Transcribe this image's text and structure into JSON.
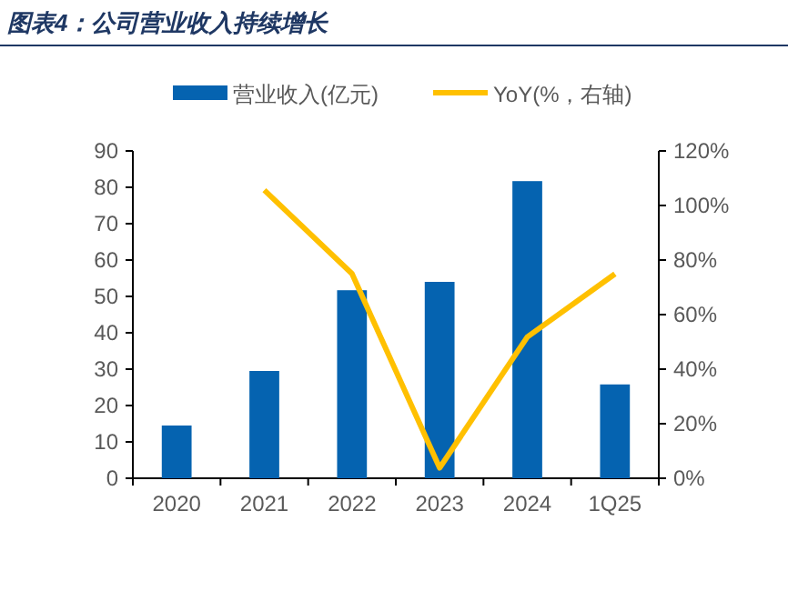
{
  "chart_data": {
    "type": "bar",
    "title": "图表4：公司营业收入持续增长",
    "categories": [
      "2020",
      "2021",
      "2022",
      "2023",
      "2024",
      "1Q25"
    ],
    "series": [
      {
        "name": "营业收入(亿元)",
        "color": "#0563b0",
        "values": [
          14.5,
          29.5,
          51.7,
          54,
          81.7,
          25.8
        ]
      },
      {
        "name": "YoY(%，右轴)",
        "type": "line",
        "axis": "y2",
        "color": "#ffc000",
        "values": [
          null,
          105.6,
          75,
          3.8,
          51.8,
          74.9
        ]
      }
    ],
    "ylim": [
      0,
      90
    ],
    "yticks": [
      0,
      10,
      20,
      30,
      40,
      50,
      60,
      70,
      80,
      90
    ],
    "y2lim": [
      0,
      120
    ],
    "y2ticks": [
      {
        "value": 0,
        "label": "0%"
      },
      {
        "value": 20,
        "label": "20%"
      },
      {
        "value": 40,
        "label": "40%"
      },
      {
        "value": 60,
        "label": "60%"
      },
      {
        "value": 80,
        "label": "80%"
      },
      {
        "value": 100,
        "label": "100%"
      },
      {
        "value": 120,
        "label": "120%"
      }
    ],
    "legend": "top",
    "grid": false
  }
}
